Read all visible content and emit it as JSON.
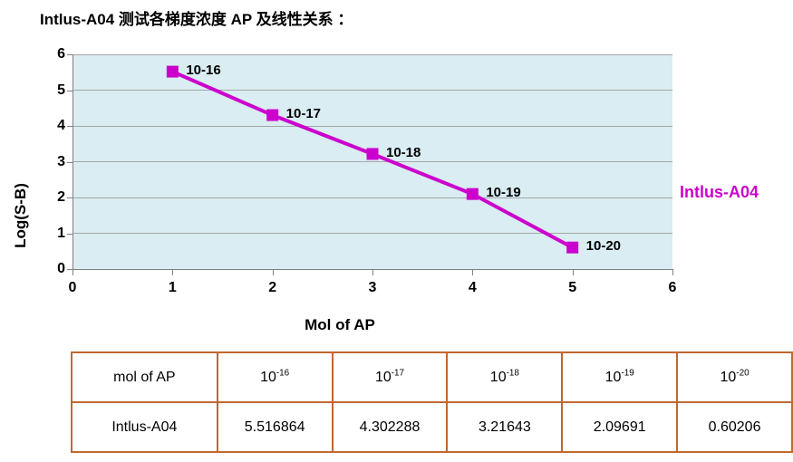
{
  "page": {
    "title": "Intlus-A04 测试各梯度浓度 AP 及线性关系 ："
  },
  "colors": {
    "series": "#CC00CC",
    "plot_bg": "#D9EDF2",
    "grid": "#A6A6A6",
    "axis": "#808080",
    "table_border": "#C0682F"
  },
  "chart_data": {
    "type": "line",
    "title": "Intlus-A04 测试各梯度浓度 AP 及线性关系 ：",
    "xlabel": "Mol of AP",
    "ylabel": "Log(S-B)",
    "legend_entries": [
      "Intlus-A04"
    ],
    "legend_position": "right",
    "x": [
      1,
      2,
      3,
      4,
      5
    ],
    "series": [
      {
        "name": "Intlus-A04",
        "values": [
          5.516864,
          4.302288,
          3.21643,
          2.09691,
          0.60206
        ]
      }
    ],
    "point_labels": [
      "10-16",
      "10-17",
      "10-18",
      "10-19",
      "10-20"
    ],
    "xlim": [
      0,
      6
    ],
    "ylim": [
      0,
      6
    ],
    "x_ticks": [
      0,
      1,
      2,
      3,
      4,
      5,
      6
    ],
    "y_ticks": [
      0,
      1,
      2,
      3,
      4,
      5,
      6
    ],
    "grid": "horizontal",
    "marker": "square"
  },
  "chart": {
    "legend_label": "Intlus-A04",
    "x_axis_title": "Mol of AP",
    "y_axis_title": "Log(S-B)"
  },
  "table": {
    "header_row": {
      "label": "mol of AP",
      "cells": [
        {
          "base": "10",
          "exp": "-16"
        },
        {
          "base": "10",
          "exp": "-17"
        },
        {
          "base": "10",
          "exp": "-18"
        },
        {
          "base": "10",
          "exp": "-19"
        },
        {
          "base": "10",
          "exp": "-20"
        }
      ]
    },
    "value_row": {
      "label": "Intlus-A04",
      "cells": [
        "5.516864",
        "4.302288",
        "3.21643",
        "2.09691",
        "0.60206"
      ]
    }
  }
}
